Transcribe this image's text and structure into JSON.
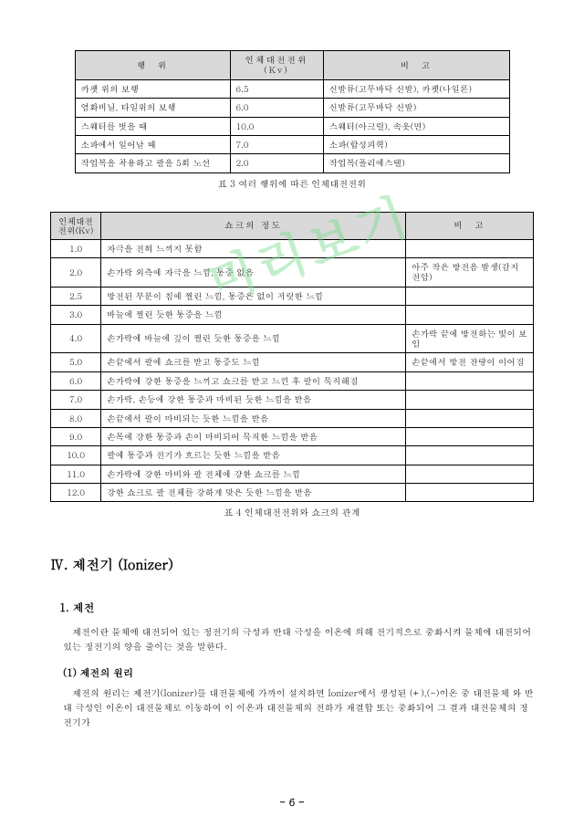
{
  "watermark": "미리보기",
  "table1": {
    "headers": [
      "행　위",
      "인체대전전위(Kv)",
      "비　고"
    ],
    "rows": [
      [
        "카펫 위의 보행",
        "6.5",
        "신발류(고무바닥 신발), 카펫(나일론)"
      ],
      [
        "염화비닐, 타일위의 보행",
        "6.0",
        "신발류(고무바닥 신발)"
      ],
      [
        "스웨터를 벗을 때",
        "10.0",
        "스웨터(아크릴), 속옷(면)"
      ],
      [
        "소파에서 일어날 때",
        "7.0",
        "소파(합성피혁)"
      ],
      [
        "작업복을 착용하고 팔을 5회 노선",
        "2.0",
        "작업복(폴리에스텔)"
      ]
    ],
    "caption": "표 3 여러 행위에 따른 인체대전전위"
  },
  "table2": {
    "headers": [
      "인체대전\n전위(Kv)",
      "쇼크의 정도",
      "비　고"
    ],
    "rows": [
      [
        "1.0",
        "자극을 전혀 느끼지 못함",
        ""
      ],
      [
        "2.0",
        "손가락 외측에 자극을 느낌, 통증 없음",
        "아주 작은 방전음 발생(감지전압)"
      ],
      [
        "2.5",
        "방전된 부분이 침에 찔린 느낌, 통증은 없이 저릿한 느낌",
        ""
      ],
      [
        "3.0",
        "바늘에 찔린 듯한 통증을 느낌",
        ""
      ],
      [
        "4.0",
        "손가락에 바늘에 깊이 찔린 듯한 통증을 느낌",
        "손가락 끝에 방전하는 빛이 보임"
      ],
      [
        "5.0",
        "손끝에서 팔에 쇼크를 받고 통증도 느낌",
        "손끝에서 방전 잔량이 이어짐"
      ],
      [
        "6.0",
        "손가락에 강한 통증을 느끼고 쇼크를 받고 느낀 후 팔이 묵직해짐",
        ""
      ],
      [
        "7.0",
        "손가락, 손등에 강한 통증과 마비된 듯한 느낌을 받음",
        ""
      ],
      [
        "8.0",
        "손끝에서 팔이 마비되는 듯한 느낌을 받음",
        ""
      ],
      [
        "9.0",
        "손목에 강한 통증과 손이 마비되어 묵직한 느낌을 받음",
        ""
      ],
      [
        "10.0",
        "팔에 통증과 전기가 흐르는 듯한 느낌을 받음",
        ""
      ],
      [
        "11.0",
        "손가락에 강한 마비와 팔 전체에 강한 쇼크를 느낌",
        ""
      ],
      [
        "12.0",
        "강한 쇼크로 팔 전체를 강하게 맞은 듯한 느낌을 받음",
        ""
      ]
    ],
    "caption": "표 4 인체대전전위와 쇼크의 관계"
  },
  "section": {
    "heading": "Ⅳ. 제전기 (Ionizer)",
    "sub1_title": "1. 제전",
    "sub1_para": "제전이란 물체에 대전되어 있는 정전기의 극성과 반대 극성을 이온에 의해 전기적으로 중화시켜 물체에 대전되어 있는 정전기의 양을 줄이는 것을 말한다.",
    "sub2_title": "(1) 제전의 원리",
    "sub2_para": "제전의 원리는 제전기(Ionizer)를 대전물체에 가까이 설치하면 Ionizer에서 생성된 (+),(-)이온 중 대전물체 와 반대 극성인 이온이 대전물체로 이동하여 이 이온과 대전물체의 전하가 재결합 또는 중화되어 그 결과 대전물체의 정전기가"
  },
  "pagenum": "- 6 -"
}
